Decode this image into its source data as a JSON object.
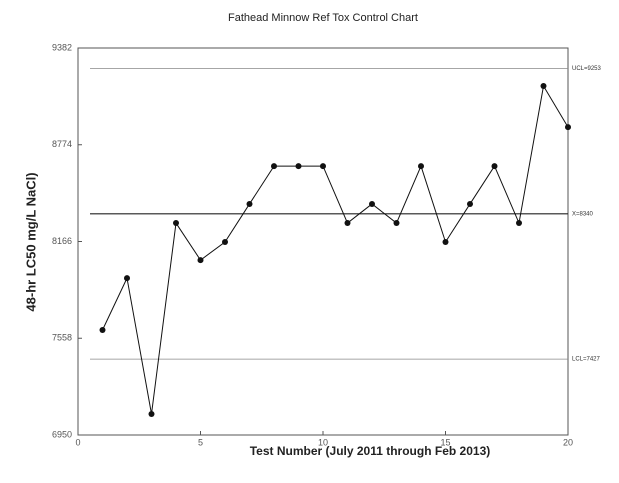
{
  "chart_data": {
    "type": "line",
    "title": "Fathead Minnow Ref Tox Control Chart",
    "x_label": "Test Number (July 2011 through Feb 2013)",
    "y_label": "48-hr LC50 mg/L NaCl)",
    "x": [
      1,
      2,
      3,
      4,
      5,
      6,
      7,
      8,
      9,
      10,
      11,
      12,
      13,
      14,
      15,
      16,
      17,
      18,
      19,
      20
    ],
    "series": [
      {
        "color": "#111111",
        "values": [
          7610,
          7936,
          7082,
          8282,
          8049,
          8163,
          8402,
          8640,
          8640,
          8640,
          8282,
          8402,
          8282,
          8640,
          8163,
          8402,
          8640,
          8282,
          9143,
          8885
        ]
      }
    ],
    "reference_lines": [
      {
        "value": 9253,
        "label": "UCL=9253"
      },
      {
        "value": 8340,
        "label": "X=8340"
      },
      {
        "value": 7427,
        "label": "LCL=7427"
      }
    ],
    "xlim": [
      0,
      20
    ],
    "xticks": [
      0,
      5,
      10,
      15,
      20
    ],
    "ylim": [
      6950,
      9382
    ],
    "yticks": [
      6950,
      7558,
      8166,
      8774,
      9382
    ]
  }
}
